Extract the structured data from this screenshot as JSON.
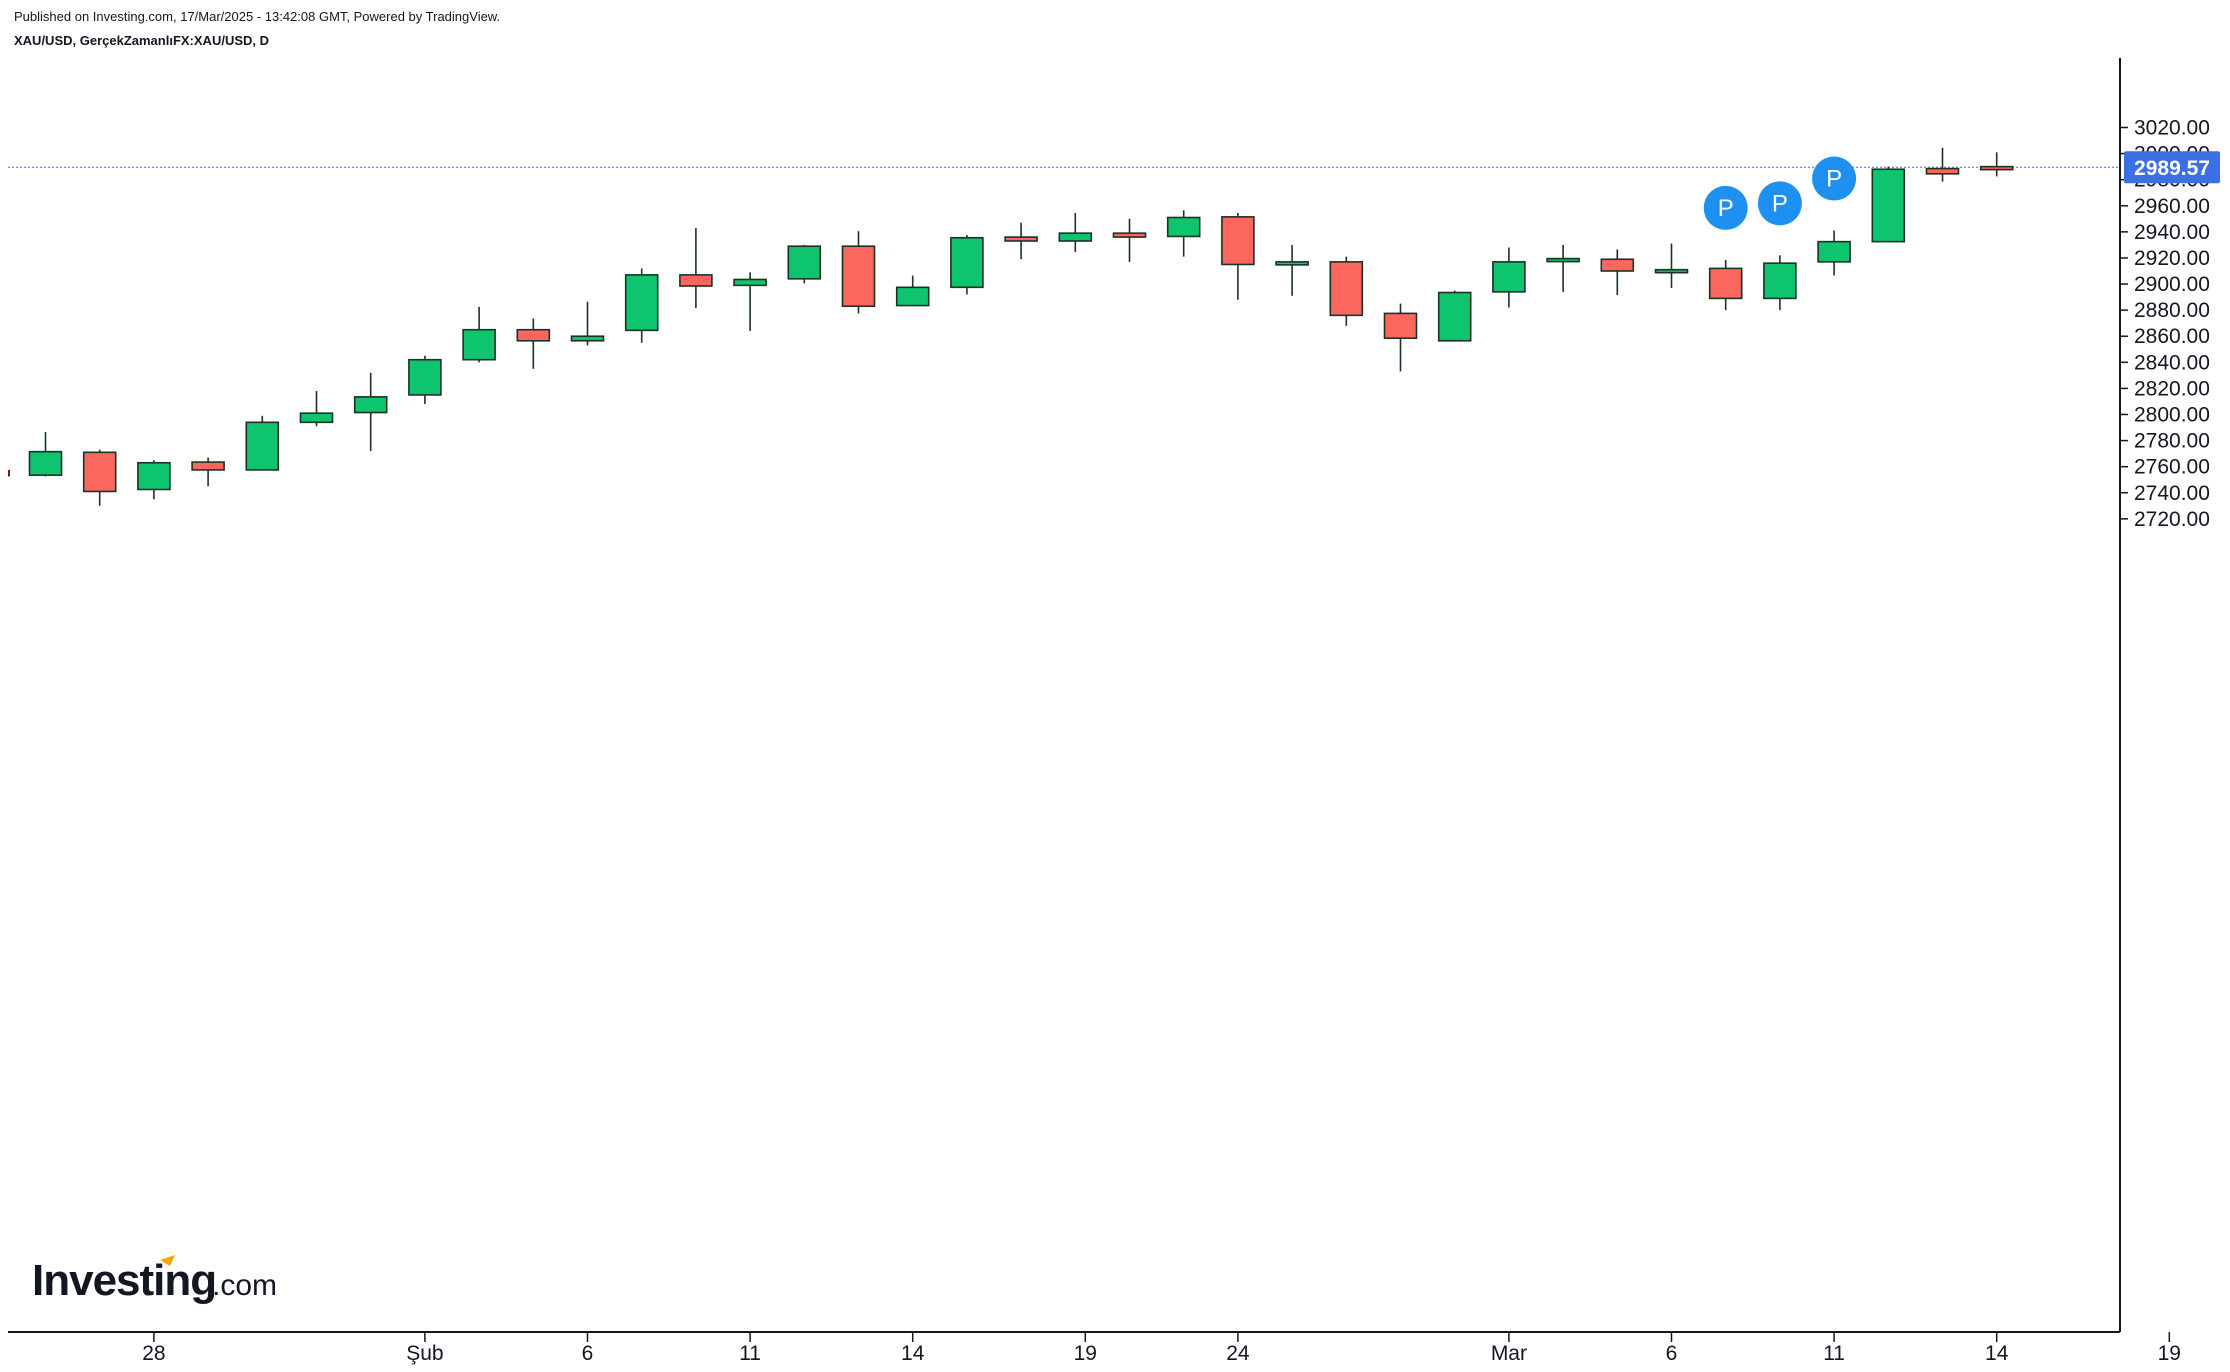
{
  "header": {
    "published": "Published on Investing.com, 17/Mar/2025 - 13:42:08 GMT, Powered by TradingView.",
    "symbol": "XAU/USD, GerçekZamanlıFX:XAU/USD, D"
  },
  "logo": {
    "main": "Investing",
    "suffix": ".com"
  },
  "colors": {
    "up": "#0ec46e",
    "down": "#fb675f",
    "wick": "#1b3325",
    "lastPrice": "#2962ff",
    "marker": "#1e90f0"
  },
  "chart_data": {
    "type": "candlestick",
    "title": "",
    "xlabel": "",
    "ylabel": "",
    "ylim": [
      2712,
      3028
    ],
    "yticks": [
      "2720.00",
      "2740.00",
      "2760.00",
      "2780.00",
      "2800.00",
      "2820.00",
      "2840.00",
      "2860.00",
      "2880.00",
      "2900.00",
      "2920.00",
      "2940.00",
      "2960.00",
      "2980.00",
      "3000.00",
      "3020.00"
    ],
    "xticks": [
      {
        "label": "28",
        "index": 2
      },
      {
        "label": "Şub",
        "index": 7
      },
      {
        "label": "6",
        "index": 10
      },
      {
        "label": "11",
        "index": 13
      },
      {
        "label": "14",
        "index": 16
      },
      {
        "label": "19",
        "index": 19
      },
      {
        "label": "24",
        "index": 22
      },
      {
        "label": "Mar",
        "index": 27
      },
      {
        "label": "6",
        "index": 30
      },
      {
        "label": "11",
        "index": 33
      },
      {
        "label": "14",
        "index": 36
      },
      {
        "label": "19",
        "index": 39
      }
    ],
    "last_price": 2989.57,
    "last_price_label": "2989.57",
    "candles": [
      {
        "date": "2025-01-27",
        "o": 2771.5,
        "h": 2786.5,
        "l": 2752.5,
        "c": 2753.5
      },
      {
        "date": "2025-01-27",
        "o": 2753.5,
        "h": 2786.5,
        "l": 2752.5,
        "c": 2771.5
      },
      {
        "date": "2025-01-28",
        "o": 2771.0,
        "h": 2773.0,
        "l": 2730.0,
        "c": 2741.0
      },
      {
        "date": "2025-01-29",
        "o": 2742.5,
        "h": 2765.0,
        "l": 2735.0,
        "c": 2763.0
      },
      {
        "date": "2025-01-30",
        "o": 2763.5,
        "h": 2767.0,
        "l": 2745.0,
        "c": 2757.5
      },
      {
        "date": "2025-01-31",
        "o": 2757.5,
        "h": 2799.0,
        "l": 2757.0,
        "c": 2794.0
      },
      {
        "date": "2025-02-03",
        "o": 2794.0,
        "h": 2818.0,
        "l": 2791.0,
        "c": 2801.0
      },
      {
        "date": "2025-02-04",
        "o": 2801.5,
        "h": 2832.0,
        "l": 2772.0,
        "c": 2813.5
      },
      {
        "date": "2025-02-05",
        "o": 2815.0,
        "h": 2845.0,
        "l": 2808.0,
        "c": 2842.0
      },
      {
        "date": "2025-02-06",
        "o": 2842.0,
        "h": 2882.5,
        "l": 2840.0,
        "c": 2865.0
      },
      {
        "date": "2025-02-07",
        "o": 2865.0,
        "h": 2873.5,
        "l": 2835.0,
        "c": 2856.5
      },
      {
        "date": "2025-02-10",
        "o": 2856.5,
        "h": 2886.5,
        "l": 2853.0,
        "c": 2860.0
      },
      {
        "date": "2025-02-11",
        "o": 2864.5,
        "h": 2912.0,
        "l": 2855.0,
        "c": 2907.0
      },
      {
        "date": "2025-02-12",
        "o": 2907.0,
        "h": 2943.0,
        "l": 2881.5,
        "c": 2898.5
      },
      {
        "date": "2025-02-13",
        "o": 2899.0,
        "h": 2909.0,
        "l": 2864.0,
        "c": 2903.5
      },
      {
        "date": "2025-02-14",
        "o": 2904.0,
        "h": 2930.0,
        "l": 2900.5,
        "c": 2929.0
      },
      {
        "date": "2025-02-17",
        "o": 2929.0,
        "h": 2940.5,
        "l": 2877.5,
        "c": 2883.0
      },
      {
        "date": "2025-02-18",
        "o": 2883.5,
        "h": 2906.5,
        "l": 2883.0,
        "c": 2897.5
      },
      {
        "date": "2025-02-19",
        "o": 2897.5,
        "h": 2937.5,
        "l": 2892.0,
        "c": 2935.5
      },
      {
        "date": "2025-02-20",
        "o": 2936.0,
        "h": 2947.0,
        "l": 2919.0,
        "c": 2933.0
      },
      {
        "date": "2025-02-21",
        "o": 2933.0,
        "h": 2954.5,
        "l": 2924.5,
        "c": 2939.0
      },
      {
        "date": "2025-02-24",
        "o": 2939.0,
        "h": 2950.0,
        "l": 2917.0,
        "c": 2936.0
      },
      {
        "date": "2025-02-25",
        "o": 2936.5,
        "h": 2956.5,
        "l": 2921.0,
        "c": 2951.0
      },
      {
        "date": "2025-02-26",
        "o": 2951.5,
        "h": 2954.5,
        "l": 2888.0,
        "c": 2915.0
      },
      {
        "date": "2025-02-27",
        "o": 2915.5,
        "h": 2930.0,
        "l": 2891.0,
        "c": 2917.0
      },
      {
        "date": "2025-02-28",
        "o": 2917.0,
        "h": 2921.0,
        "l": 2868.0,
        "c": 2876.0
      },
      {
        "date": "2025-03-03",
        "o": 2877.5,
        "h": 2885.0,
        "l": 2833.0,
        "c": 2858.5
      },
      {
        "date": "2025-03-04",
        "o": 2856.5,
        "h": 2895.0,
        "l": 2856.0,
        "c": 2893.5
      },
      {
        "date": "2025-03-05",
        "o": 2894.0,
        "h": 2928.0,
        "l": 2882.0,
        "c": 2917.0
      },
      {
        "date": "2025-03-06",
        "o": 2917.5,
        "h": 2930.0,
        "l": 2894.0,
        "c": 2919.5
      },
      {
        "date": "2025-03-07",
        "o": 2919.0,
        "h": 2926.5,
        "l": 2891.5,
        "c": 2910.0
      },
      {
        "date": "2025-03-10",
        "o": 2910.0,
        "h": 2931.0,
        "l": 2897.0,
        "c": 2911.0
      },
      {
        "date": "2025-03-11",
        "o": 2912.0,
        "h": 2918.5,
        "l": 2880.0,
        "c": 2889.0
      },
      {
        "date": "2025-03-12",
        "o": 2889.0,
        "h": 2922.0,
        "l": 2880.0,
        "c": 2916.0
      },
      {
        "date": "2025-03-13",
        "o": 2917.0,
        "h": 2941.0,
        "l": 2906.5,
        "c": 2932.5
      },
      {
        "date": "2025-03-14",
        "o": 2932.5,
        "h": 2990.0,
        "l": 2932.0,
        "c": 2988.0
      },
      {
        "date": "2025-03-14",
        "o": 2988.5,
        "h": 3004.5,
        "l": 2978.5,
        "c": 2984.5
      },
      {
        "date": "2025-03-17",
        "o": 2990.0,
        "h": 3001.0,
        "l": 2982.5,
        "c": 2989.57
      }
    ],
    "markers": [
      {
        "label": "P",
        "index": 31
      },
      {
        "label": "P",
        "index": 32
      },
      {
        "label": "P",
        "index": 33
      }
    ]
  }
}
